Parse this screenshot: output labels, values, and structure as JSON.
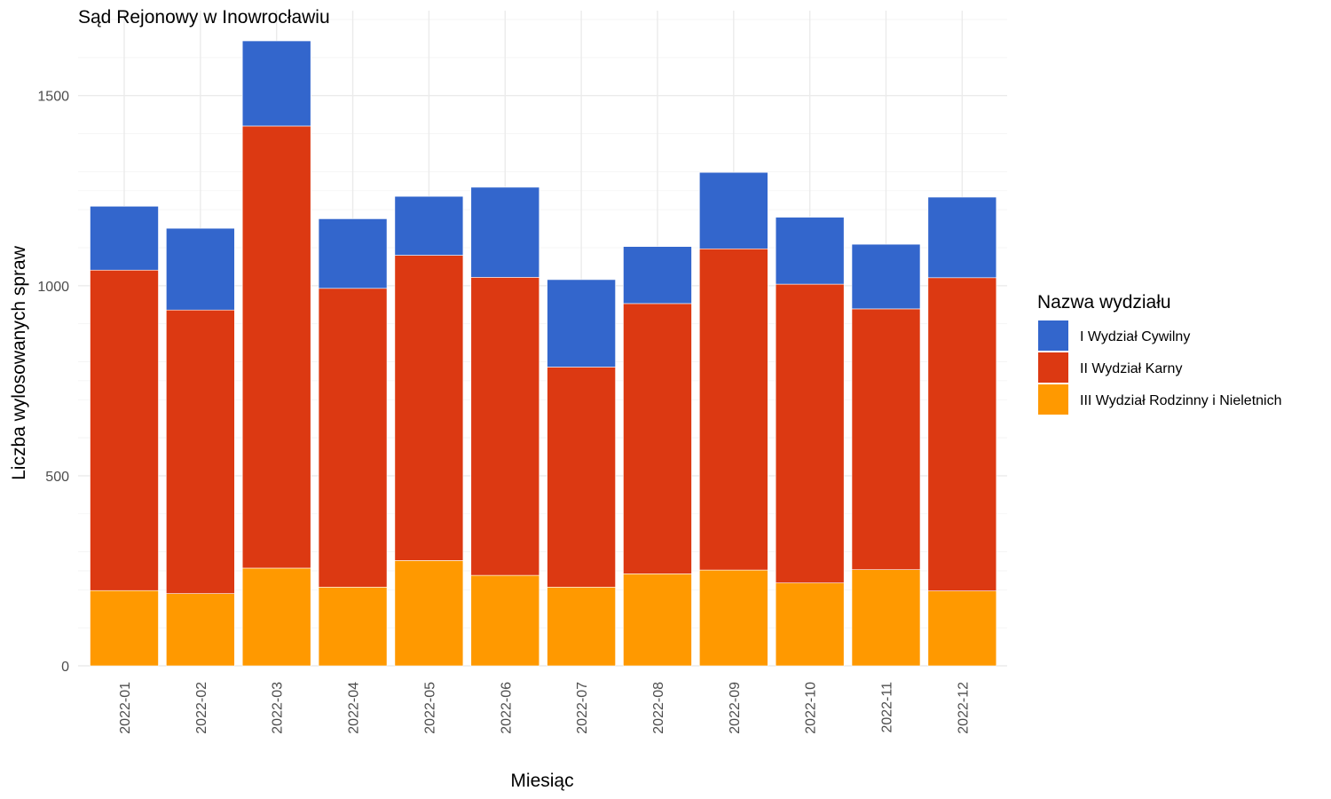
{
  "chart_data": {
    "type": "bar",
    "stacked": true,
    "title": "Sąd Rejonowy w Inowrocławiu",
    "xlabel": "Miesiąc",
    "ylabel": "Liczba wylosowanych spraw",
    "ylim": [
      0,
      1720
    ],
    "yticks": [
      0,
      500,
      1000,
      1500
    ],
    "grid": true,
    "legend": {
      "title": "Nazwa wydziału",
      "placement": "right"
    },
    "categories": [
      "2022-01",
      "2022-02",
      "2022-03",
      "2022-04",
      "2022-05",
      "2022-06",
      "2022-07",
      "2022-08",
      "2022-09",
      "2022-10",
      "2022-11",
      "2022-12"
    ],
    "series": [
      {
        "name": "III Wydział Rodzinny i Nieletnich",
        "color": "#FF9900",
        "values": [
          198,
          190,
          257,
          207,
          277,
          238,
          207,
          242,
          252,
          218,
          253,
          197
        ]
      },
      {
        "name": "II Wydział Karny",
        "color": "#DC3912",
        "values": [
          843,
          746,
          1163,
          786,
          803,
          784,
          579,
          711,
          845,
          786,
          686,
          824
        ]
      },
      {
        "name": "I Wydział Cywilny",
        "color": "#3366CC",
        "values": [
          168,
          215,
          224,
          183,
          155,
          237,
          230,
          150,
          201,
          176,
          170,
          212
        ]
      }
    ],
    "legend_order": [
      "I Wydział Cywilny",
      "II Wydział Karny",
      "III Wydział Rodzinny i Nieletnich"
    ]
  }
}
